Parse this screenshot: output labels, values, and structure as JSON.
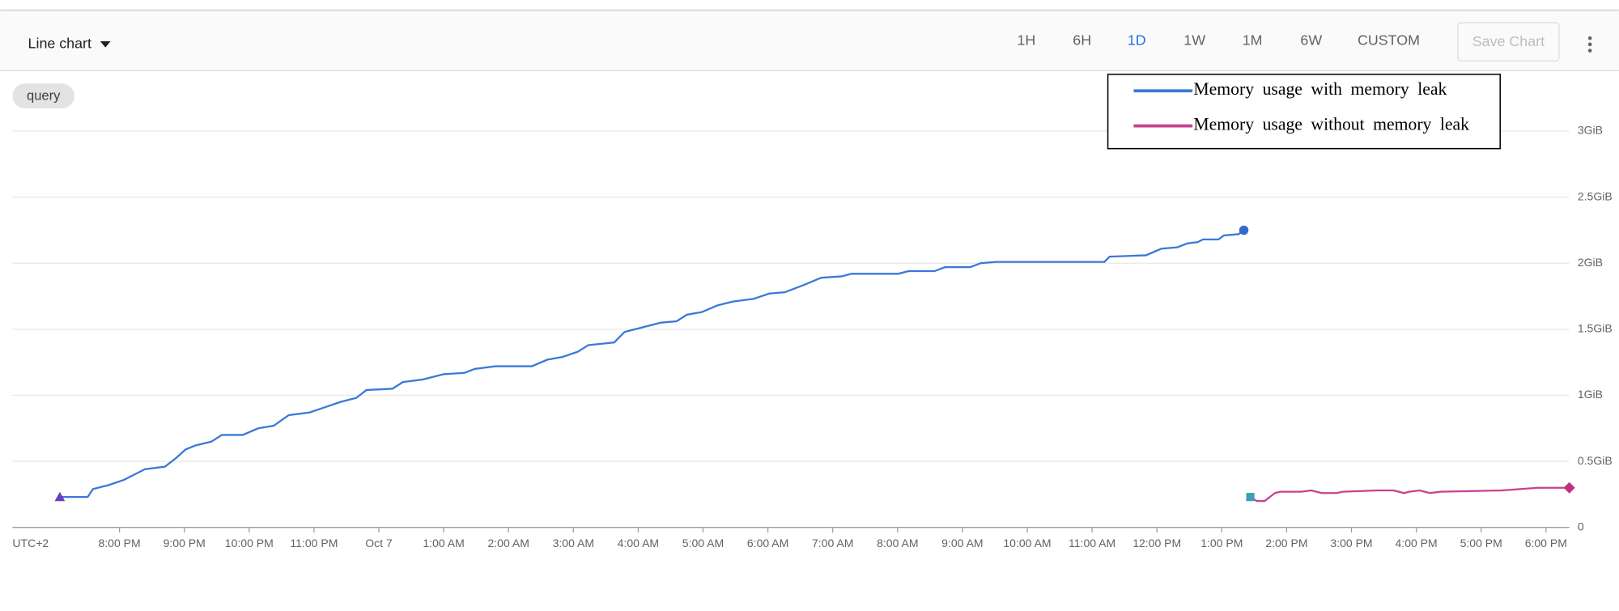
{
  "toolbar": {
    "chart_type": "Line chart",
    "ranges": [
      "1H",
      "6H",
      "1D",
      "1W",
      "1M",
      "6W",
      "CUSTOM"
    ],
    "selected_range": 2,
    "save_button": "Save Chart"
  },
  "query_chip": "query",
  "chart_data": {
    "type": "line",
    "x_axis_label": "UTC+2",
    "xlim": [
      -5.65,
      18.36
    ],
    "xticks": [
      {
        "value": -4,
        "label": "8:00 PM"
      },
      {
        "value": -3,
        "label": "9:00 PM"
      },
      {
        "value": -2,
        "label": "10:00 PM"
      },
      {
        "value": -1,
        "label": "11:00 PM"
      },
      {
        "value": 0,
        "label": "Oct 7"
      },
      {
        "value": 1,
        "label": "1:00 AM"
      },
      {
        "value": 2,
        "label": "2:00 AM"
      },
      {
        "value": 3,
        "label": "3:00 AM"
      },
      {
        "value": 4,
        "label": "4:00 AM"
      },
      {
        "value": 5,
        "label": "5:00 AM"
      },
      {
        "value": 6,
        "label": "6:00 AM"
      },
      {
        "value": 7,
        "label": "7:00 AM"
      },
      {
        "value": 8,
        "label": "8:00 AM"
      },
      {
        "value": 9,
        "label": "9:00 AM"
      },
      {
        "value": 10,
        "label": "10:00 AM"
      },
      {
        "value": 11,
        "label": "11:00 AM"
      },
      {
        "value": 12,
        "label": "12:00 PM"
      },
      {
        "value": 13,
        "label": "1:00 PM"
      },
      {
        "value": 14,
        "label": "2:00 PM"
      },
      {
        "value": 15,
        "label": "3:00 PM"
      },
      {
        "value": 16,
        "label": "4:00 PM"
      },
      {
        "value": 17,
        "label": "5:00 PM"
      },
      {
        "value": 18,
        "label": "6:00 PM"
      }
    ],
    "ylim": [
      0,
      3.43
    ],
    "yticks": [
      0,
      {
        "value": 0.5,
        "label": "0.5GiB"
      },
      {
        "value": 1,
        "label": "1GiB"
      },
      {
        "value": 1.5,
        "label": "1.5GiB"
      },
      {
        "value": 2,
        "label": "2GiB"
      },
      {
        "value": 2.5,
        "label": "2.5GiB"
      },
      {
        "value": 3,
        "label": "3GiB"
      }
    ],
    "grid": true,
    "legend": "upper right",
    "series": [
      {
        "name": "Memory usage with memory leak",
        "color": "#3b78d8",
        "marker_colors": [
          "#6a3cc4",
          "#2f6bd0"
        ],
        "x": [
          -4.92,
          -4.49,
          -4.41,
          -4.17,
          -3.93,
          -3.77,
          -3.61,
          -3.3,
          -3.14,
          -2.98,
          -2.83,
          -2.58,
          -2.42,
          -2.1,
          -1.86,
          -1.62,
          -1.39,
          -1.07,
          -0.83,
          -0.59,
          -0.35,
          -0.19,
          0.21,
          0.37,
          0.68,
          1.0,
          1.32,
          1.48,
          1.8,
          2.36,
          2.6,
          2.83,
          3.07,
          3.23,
          3.63,
          3.79,
          4.03,
          4.35,
          4.59,
          4.75,
          4.98,
          5.22,
          5.46,
          5.78,
          6.02,
          6.26,
          6.58,
          6.82,
          7.13,
          7.29,
          8.01,
          8.17,
          8.57,
          8.73,
          9.12,
          9.28,
          9.52,
          11.19,
          11.27,
          11.83,
          12.07,
          12.31,
          12.47,
          12.63,
          12.71,
          12.95,
          13.03,
          13.26,
          13.34
        ],
        "values": [
          0.23,
          0.23,
          0.29,
          0.32,
          0.36,
          0.4,
          0.44,
          0.46,
          0.52,
          0.59,
          0.62,
          0.65,
          0.7,
          0.7,
          0.75,
          0.77,
          0.85,
          0.87,
          0.91,
          0.95,
          0.98,
          1.04,
          1.05,
          1.1,
          1.12,
          1.16,
          1.17,
          1.2,
          1.22,
          1.22,
          1.27,
          1.29,
          1.33,
          1.38,
          1.4,
          1.48,
          1.51,
          1.55,
          1.56,
          1.61,
          1.63,
          1.68,
          1.71,
          1.73,
          1.77,
          1.78,
          1.84,
          1.89,
          1.9,
          1.92,
          1.92,
          1.94,
          1.94,
          1.97,
          1.97,
          2.0,
          2.01,
          2.01,
          2.05,
          2.06,
          2.11,
          2.12,
          2.15,
          2.16,
          2.18,
          2.18,
          2.21,
          2.22,
          2.25
        ]
      },
      {
        "name": "Memory usage without memory leak",
        "color": "#c8418f",
        "marker_colors": [
          "#3aa0b4",
          "#c0307f"
        ],
        "x": [
          13.44,
          13.54,
          13.66,
          13.82,
          13.9,
          14.22,
          14.38,
          14.54,
          14.78,
          14.86,
          15.41,
          15.65,
          15.81,
          15.89,
          16.05,
          16.21,
          16.37,
          17.32,
          17.87,
          18.36
        ],
        "values": [
          0.23,
          0.2,
          0.2,
          0.26,
          0.27,
          0.27,
          0.28,
          0.26,
          0.26,
          0.27,
          0.28,
          0.28,
          0.26,
          0.27,
          0.28,
          0.26,
          0.27,
          0.28,
          0.3,
          0.3
        ]
      }
    ]
  }
}
